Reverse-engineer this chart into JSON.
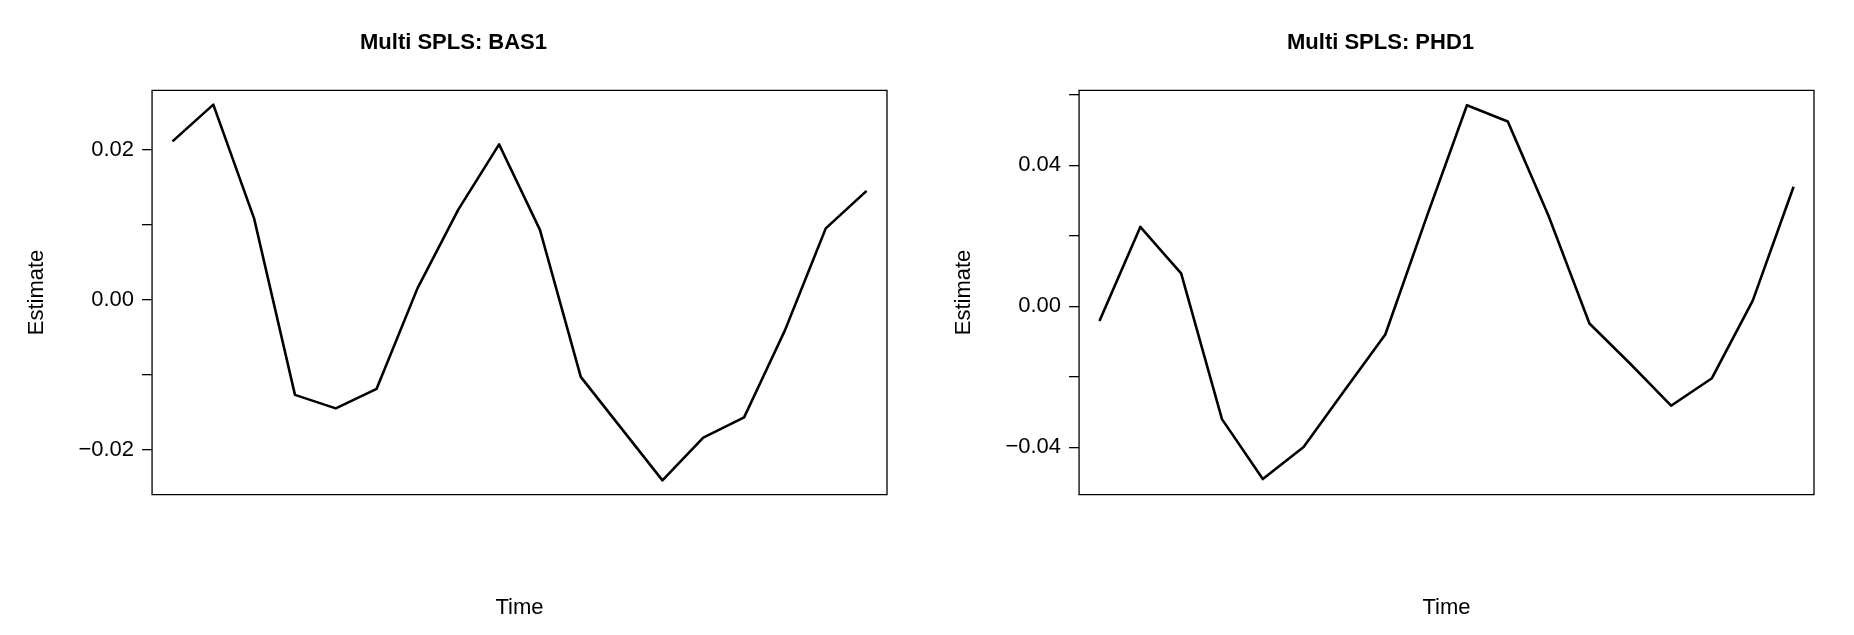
{
  "chart_data": [
    {
      "type": "line",
      "title": "Multi SPLS: BAS1",
      "xlabel": "Time",
      "ylabel": "Estimate",
      "categories": [
        null,
        null,
        null,
        null,
        null,
        null,
        null,
        null,
        null,
        null,
        null,
        null,
        null,
        null,
        null,
        null,
        null,
        null
      ],
      "series": [
        {
          "color": "#000000",
          "values": [
            0.0211,
            0.026,
            0.0108,
            -0.0127,
            -0.0145,
            -0.0119,
            0.0015,
            0.012,
            0.0207,
            0.0093,
            -0.0103,
            -0.0172,
            -0.0241,
            -0.0184,
            -0.0157,
            -0.0041,
            0.0095,
            0.0145
          ]
        }
      ],
      "ylim": [
        -0.026,
        0.0279
      ],
      "yticks": [
        {
          "value": -0.02,
          "label": "−0.02"
        },
        {
          "value": -0.01,
          "label": null
        },
        {
          "value": 0,
          "label": "0.00"
        },
        {
          "value": 0.01,
          "label": null
        },
        {
          "value": 0.02,
          "label": "0.02"
        }
      ],
      "tick_labels": "y",
      "grid": false,
      "legend": false,
      "marker": "none",
      "line_style": "solid"
    },
    {
      "type": "line",
      "title": "Multi SPLS: PHD1",
      "xlabel": "Time",
      "ylabel": "Estimate",
      "categories": [
        null,
        null,
        null,
        null,
        null,
        null,
        null,
        null,
        null,
        null,
        null,
        null,
        null,
        null,
        null,
        null,
        null,
        null
      ],
      "series": [
        {
          "color": "#000000",
          "values": [
            -0.0042,
            0.0225,
            0.0093,
            -0.032,
            -0.049,
            -0.0399,
            -0.0239,
            -0.008,
            0.0249,
            0.057,
            0.0524,
            0.0256,
            -0.0049,
            -0.0163,
            -0.0282,
            -0.0204,
            0.0016,
            0.0339
          ]
        }
      ],
      "ylim": [
        -0.0534,
        0.0612
      ],
      "yticks": [
        {
          "value": -0.04,
          "label": "−0.04"
        },
        {
          "value": -0.02,
          "label": null
        },
        {
          "value": 0,
          "label": "0.00"
        },
        {
          "value": 0.02,
          "label": null
        },
        {
          "value": 0.04,
          "label": "0.04"
        },
        {
          "value": 0.06,
          "label": null
        }
      ],
      "tick_labels": "y",
      "grid": false,
      "legend": false,
      "marker": "none",
      "line_style": "solid"
    }
  ]
}
